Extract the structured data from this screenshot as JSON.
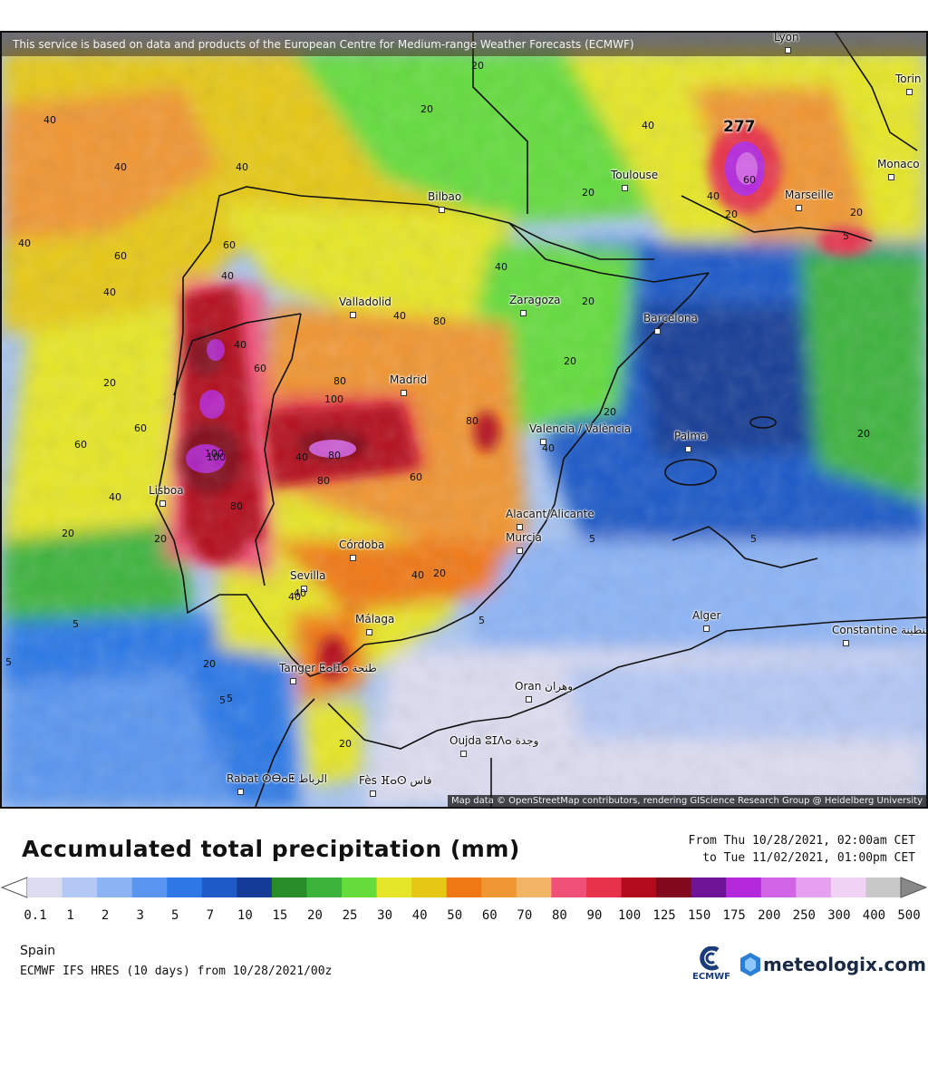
{
  "map": {
    "attribution_top": "This service is based on data and products of the European Centre for Medium-range Weather Forecasts (ECMWF)",
    "attribution_bottom": "Map data © OpenStreetMap contributors, rendering GIScience Research Group @ Heidelberg University",
    "max_value": "277",
    "cities": [
      {
        "name": "Lyon"
      },
      {
        "name": "Torin"
      },
      {
        "name": "Monaco"
      },
      {
        "name": "Toulouse"
      },
      {
        "name": "Marseille"
      },
      {
        "name": "Bilbao"
      },
      {
        "name": "Valladolid"
      },
      {
        "name": "Zaragoza"
      },
      {
        "name": "Barcelona"
      },
      {
        "name": "Madrid"
      },
      {
        "name": "Valencia / València"
      },
      {
        "name": "Palma"
      },
      {
        "name": "Lisboa"
      },
      {
        "name": "Córdoba"
      },
      {
        "name": "Alacant/Alicante"
      },
      {
        "name": "Murcia"
      },
      {
        "name": "Sevilla"
      },
      {
        "name": "Málaga"
      },
      {
        "name": "Alger"
      },
      {
        "name": "Constantine قسنطينة"
      },
      {
        "name": "Tanger ⵟⴰⵏⵊⴰ طنجة"
      },
      {
        "name": "Oran وهران"
      },
      {
        "name": "Oujda ⵓⵊⴷⴰ وجدة"
      },
      {
        "name": "Rabat ⵔⴱⴰⵟ الرباط"
      },
      {
        "name": "Fès ⴼⴰⵙ فاس"
      }
    ],
    "isolines": [
      "40",
      "20",
      "40",
      "40",
      "60",
      "40",
      "40",
      "20",
      "20",
      "40",
      "60",
      "40",
      "20",
      "20",
      "20",
      "40",
      "40",
      "80",
      "40",
      "60",
      "20",
      "20",
      "40",
      "80",
      "100",
      "40",
      "100",
      "80",
      "60",
      "80",
      "60",
      "100",
      "80",
      "60",
      "40",
      "20",
      "20",
      "40",
      "5",
      "5",
      "5",
      "20",
      "20",
      "5",
      "5",
      "5",
      "5",
      "20",
      "20",
      "5",
      "40",
      "60",
      "80",
      "40",
      "20",
      "40"
    ]
  },
  "legend": {
    "title": "Accumulated total precipitation (mm)",
    "period_from": "From Thu 10/28/2021, 02:00am CET",
    "period_to": "to Tue 11/02/2021, 01:00pm CET",
    "region": "Spain",
    "model": "ECMWF IFS HRES (10 days) from 10/28/2021/00z",
    "ecmwf_label": "ECMWF",
    "brand": "meteologix.com",
    "scale_ticks": [
      "0.1",
      "1",
      "2",
      "3",
      "5",
      "7",
      "10",
      "15",
      "20",
      "25",
      "30",
      "40",
      "50",
      "60",
      "70",
      "80",
      "90",
      "100",
      "125",
      "150",
      "175",
      "200",
      "250",
      "300",
      "400",
      "500"
    ],
    "scale_colors": [
      "#dcdcf0",
      "#b4c8f5",
      "#8cb4f5",
      "#5a96f0",
      "#2c78e6",
      "#1e5ac8",
      "#143c96",
      "#288c28",
      "#3cb43c",
      "#64dc3c",
      "#e6e628",
      "#e6c814",
      "#f07814",
      "#f09632",
      "#f0b464",
      "#f05078",
      "#e6324b",
      "#b40a1e",
      "#82081e",
      "#6e1496",
      "#b428dc",
      "#d264e6",
      "#e6a0f0",
      "#f0d2f5",
      "#c8c8c8"
    ]
  }
}
